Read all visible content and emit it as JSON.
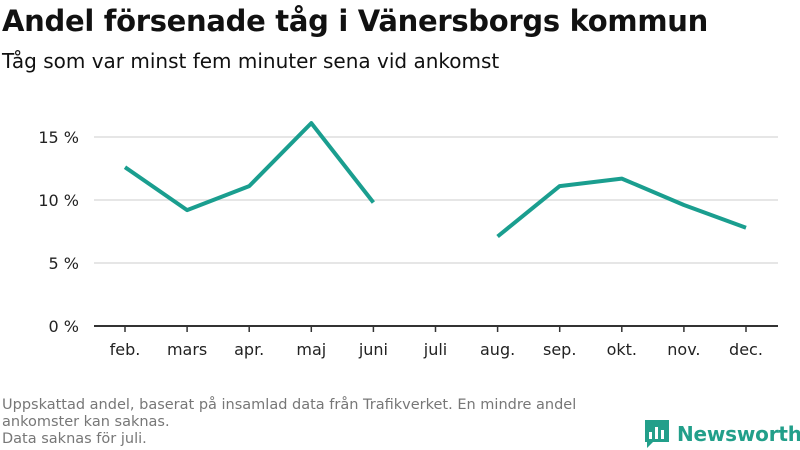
{
  "header": {
    "title": "Andel försenade tåg i Vänersborgs kommun",
    "subtitle": "Tåg som var minst fem minuter sena vid ankomst"
  },
  "chart_data": {
    "type": "line",
    "title": "Andel försenade tåg i Vänersborgs kommun",
    "subtitle": "Tåg som var minst fem minuter sena vid ankomst",
    "xlabel": "",
    "ylabel": "",
    "categories": [
      "feb.",
      "mars",
      "apr.",
      "maj",
      "juni",
      "juli",
      "aug.",
      "sep.",
      "okt.",
      "nov.",
      "dec."
    ],
    "series": [
      {
        "values": [
          12.6,
          9.2,
          11.1,
          16.1,
          9.8,
          null,
          7.1,
          11.1,
          11.7,
          9.6,
          7.8
        ]
      }
    ],
    "y_ticks": [
      {
        "value": 0,
        "label": "0 %"
      },
      {
        "value": 5,
        "label": "5 %"
      },
      {
        "value": 10,
        "label": "10 %"
      },
      {
        "value": 15,
        "label": "15 %"
      }
    ],
    "ylim": [
      0,
      18
    ],
    "grid": true,
    "line_color": "#1a9e8f",
    "grid_color": "#dddddd",
    "axis_color": "#333333"
  },
  "footer": {
    "note_line1": "Uppskattad andel, baserat på insamlad data från Trafikverket. En mindre andel ankomster kan saknas.",
    "note_line2": "Data saknas för juli.",
    "brand_name": "Newsworthy",
    "brand_icon": "newsworthy-logo-icon",
    "brand_color": "#229f8a"
  }
}
